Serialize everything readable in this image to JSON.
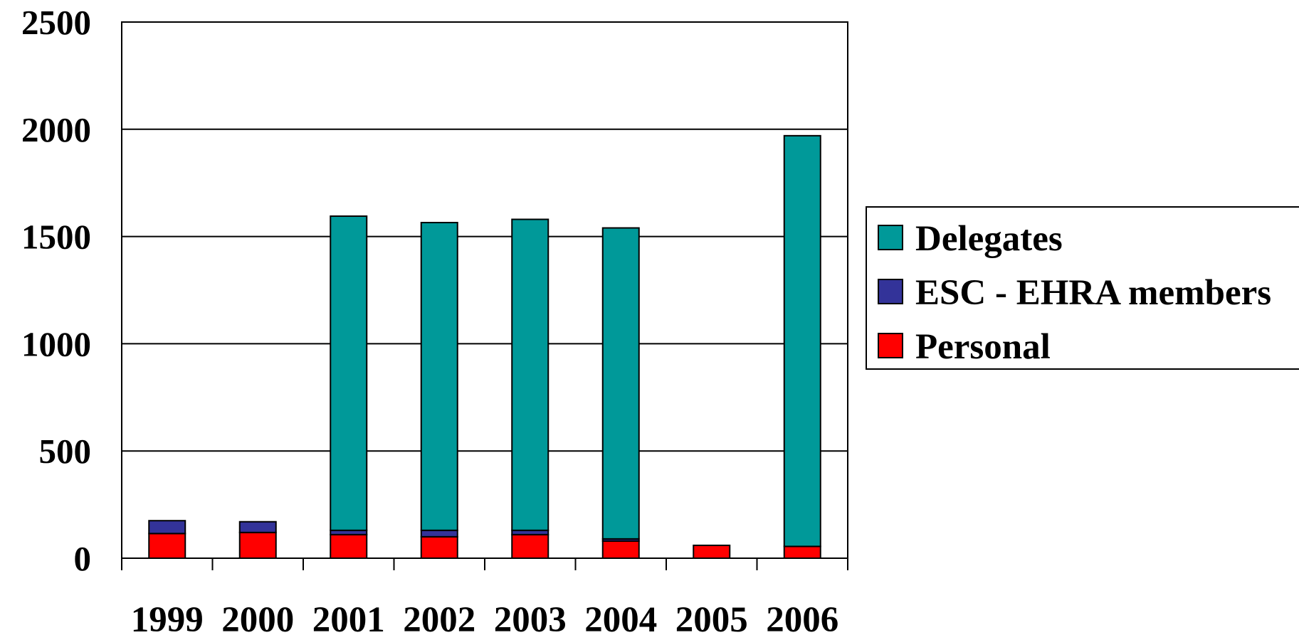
{
  "chart_data": {
    "type": "bar",
    "stacked": true,
    "categories": [
      "1999",
      "2000",
      "2001",
      "2002",
      "2003",
      "2004",
      "2005",
      "2006"
    ],
    "series": [
      {
        "name": "Personal",
        "color": "#ff0000",
        "values": [
          115,
          120,
          110,
          100,
          110,
          80,
          60,
          55
        ]
      },
      {
        "name": "ESC - EHRA members",
        "color": "#333399",
        "values": [
          60,
          50,
          20,
          30,
          20,
          10,
          0,
          0
        ]
      },
      {
        "name": "Delegates",
        "color": "#009999",
        "values": [
          0,
          0,
          1465,
          1435,
          1450,
          1450,
          0,
          1915
        ]
      }
    ],
    "ylim": [
      0,
      2500
    ],
    "yticks": [
      "0",
      "500",
      "1000",
      "1500",
      "2000",
      "2500"
    ],
    "grid": true,
    "legend": {
      "position": "right",
      "entries": [
        "Delegates",
        "ESC - EHRA members",
        "Personal"
      ]
    }
  }
}
